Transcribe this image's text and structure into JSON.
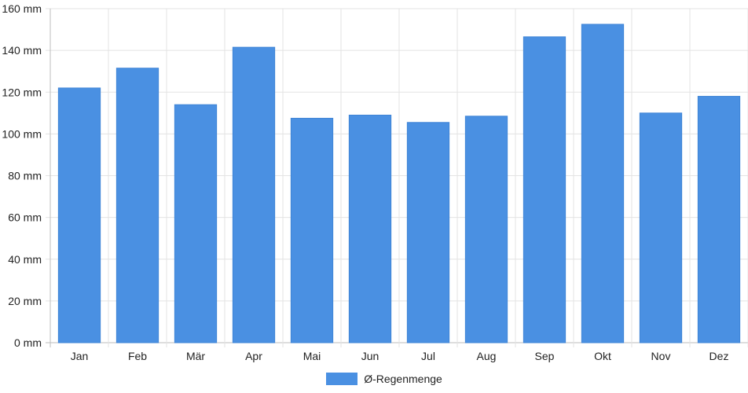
{
  "chart_data": {
    "type": "bar",
    "categories": [
      "Jan",
      "Feb",
      "Mär",
      "Apr",
      "Mai",
      "Jun",
      "Jul",
      "Aug",
      "Sep",
      "Okt",
      "Nov",
      "Dez"
    ],
    "series": [
      {
        "name": "Ø-Regenmenge",
        "values": [
          122,
          131.5,
          114,
          141.5,
          107.5,
          109,
          105.5,
          108.5,
          146.5,
          152.5,
          110,
          118
        ],
        "color": "#4a90e2"
      }
    ],
    "ylim": [
      0,
      160
    ],
    "yticks": [
      0,
      20,
      40,
      60,
      80,
      100,
      120,
      140,
      160
    ],
    "ytick_labels": [
      "0 mm",
      "20 mm",
      "40 mm",
      "60 mm",
      "80 mm",
      "100 mm",
      "120 mm",
      "140 mm",
      "160 mm"
    ],
    "grid": true,
    "legend_position": "bottom-center",
    "title": "",
    "xlabel": "",
    "ylabel": ""
  }
}
